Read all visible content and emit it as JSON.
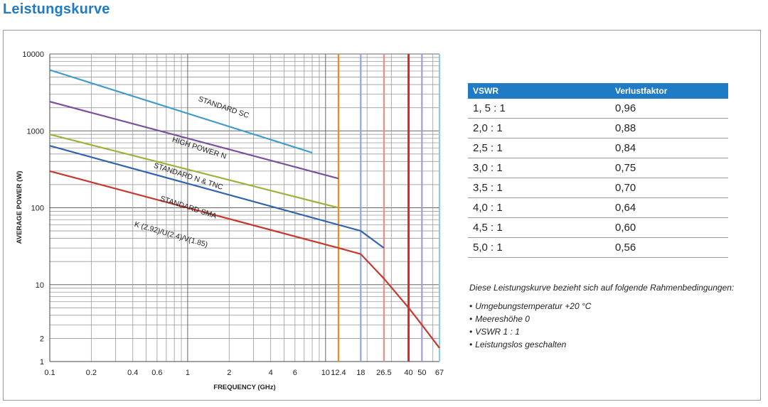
{
  "heading": "Leistungskurve",
  "chart_data": {
    "type": "line",
    "xlabel": "FREQUENCY (GHz)",
    "ylabel": "AVERAGE POWER (W)",
    "xscale": "log",
    "yscale": "log",
    "xlim": [
      0.1,
      67
    ],
    "ylim": [
      1,
      10000
    ],
    "grid": true,
    "x_ticks": [
      {
        "value": 0.1,
        "label": "0.1"
      },
      {
        "value": 0.2,
        "label": "0.2"
      },
      {
        "value": 0.4,
        "label": "0.4"
      },
      {
        "value": 0.6,
        "label": "0.6"
      },
      {
        "value": 1,
        "label": "1"
      },
      {
        "value": 2,
        "label": "2"
      },
      {
        "value": 4,
        "label": "4"
      },
      {
        "value": 6,
        "label": "6"
      },
      {
        "value": 10,
        "label": "10"
      },
      {
        "value": 12.4,
        "label": "12.4"
      },
      {
        "value": 18,
        "label": "18"
      },
      {
        "value": 26.5,
        "label": "26.5"
      },
      {
        "value": 40,
        "label": "40"
      },
      {
        "value": 50,
        "label": "50"
      },
      {
        "value": 67,
        "label": "67"
      }
    ],
    "y_ticks": [
      {
        "value": 10000,
        "label": "10000"
      },
      {
        "value": 1000,
        "label": "1000"
      },
      {
        "value": 100,
        "label": "100"
      },
      {
        "value": 10,
        "label": "10"
      },
      {
        "value": 2,
        "label": "2"
      },
      {
        "value": 1,
        "label": "1"
      }
    ],
    "cutoff_lines": [
      {
        "x": 12.4,
        "color": "#f08a1c"
      },
      {
        "x": 18,
        "color": "#8fa6dc"
      },
      {
        "x": 26.5,
        "color": "#e7908a"
      },
      {
        "x": 40,
        "color": "#d82a24"
      },
      {
        "x": 50,
        "color": "#a79ad0"
      },
      {
        "x": 67,
        "color": "#8ccbe0"
      }
    ],
    "series": [
      {
        "name": "STANDARD SC",
        "color": "#3d9cc8",
        "label_x": 1.8,
        "label_y": 1900,
        "label_angle": 19,
        "points": [
          [
            0.1,
            6200
          ],
          [
            8,
            520
          ]
        ]
      },
      {
        "name": "HIGH POWER N",
        "color": "#7a4f9e",
        "label_x": 1.2,
        "label_y": 560,
        "label_angle": 18,
        "points": [
          [
            0.1,
            2400
          ],
          [
            12.4,
            240
          ]
        ]
      },
      {
        "name": "STANDARD N & TNC",
        "color": "#9cb23a",
        "label_x": 1.0,
        "label_y": 240,
        "label_angle": 18,
        "points": [
          [
            0.1,
            900
          ],
          [
            12.4,
            100
          ]
        ]
      },
      {
        "name": "STANDARD SMA",
        "color": "#2f64ad",
        "label_x": 1.0,
        "label_y": 95,
        "label_angle": 18,
        "points": [
          [
            0.1,
            640
          ],
          [
            12.4,
            60
          ],
          [
            18,
            50
          ],
          [
            26.5,
            30
          ]
        ]
      },
      {
        "name": "K (2.92)/U(2.4)/V(1.85)",
        "color": "#c8372d",
        "label_x": 0.75,
        "label_y": 42,
        "label_angle": 16,
        "points": [
          [
            0.1,
            300
          ],
          [
            12.4,
            30
          ],
          [
            18,
            25
          ],
          [
            26.5,
            12
          ],
          [
            40,
            5
          ],
          [
            50,
            3
          ],
          [
            67,
            1.5
          ]
        ]
      }
    ]
  },
  "table": {
    "headers": [
      "VSWR",
      "Verlustfaktor"
    ],
    "rows": [
      [
        "1, 5 : 1",
        "0,96"
      ],
      [
        "2,0 : 1",
        "0,88"
      ],
      [
        "2,5 : 1",
        "0,84"
      ],
      [
        "3,0 : 1",
        "0,75"
      ],
      [
        "3,5 : 1",
        "0,70"
      ],
      [
        "4,0 : 1",
        "0,64"
      ],
      [
        "4,5 : 1",
        "0,60"
      ],
      [
        "5,0 : 1",
        "0,56"
      ]
    ]
  },
  "conditions": {
    "intro": "Diese Leistungskurve bezieht sich auf folgende Rahmenbedingungen:",
    "items": [
      "Umgebungstemperatur  +20 °C",
      "Meereshöhe 0",
      "VSWR 1 : 1",
      "Leistungslos geschalten"
    ]
  }
}
